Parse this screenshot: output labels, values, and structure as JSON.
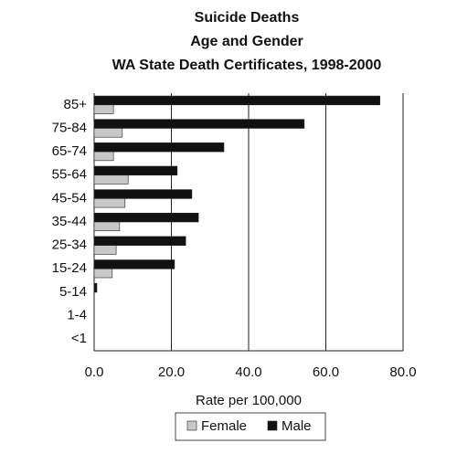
{
  "chart_data": {
    "type": "hbar",
    "title": [
      "Suicide Deaths",
      "Age and Gender",
      "WA State Death Certificates, 1998-2000"
    ],
    "x_label": "Rate per 100,000",
    "categories": [
      "85+",
      "75-84",
      "65-74",
      "55-64",
      "45-54",
      "35-44",
      "25-34",
      "15-24",
      "5-14",
      "1-4",
      "<1"
    ],
    "series": [
      {
        "name": "Male",
        "color": "#111111",
        "values": [
          74,
          54.4,
          33.6,
          21.5,
          25.3,
          27,
          23.7,
          20.8,
          0.7,
          0,
          0
        ]
      },
      {
        "name": "Female",
        "color": "#c8c8c8",
        "values": [
          5,
          7.3,
          5,
          8.8,
          8,
          6.6,
          5.7,
          4.7,
          0,
          0,
          0
        ]
      }
    ],
    "xlim": [
      0,
      80
    ],
    "xticks": [
      {
        "value": 0,
        "label": "0.0"
      },
      {
        "value": 20,
        "label": "20.0"
      },
      {
        "value": 40,
        "label": "40.0"
      },
      {
        "value": 60,
        "label": "60.0"
      },
      {
        "value": 80,
        "label": "80.0"
      }
    ],
    "grid": true,
    "legend": "bottom"
  }
}
